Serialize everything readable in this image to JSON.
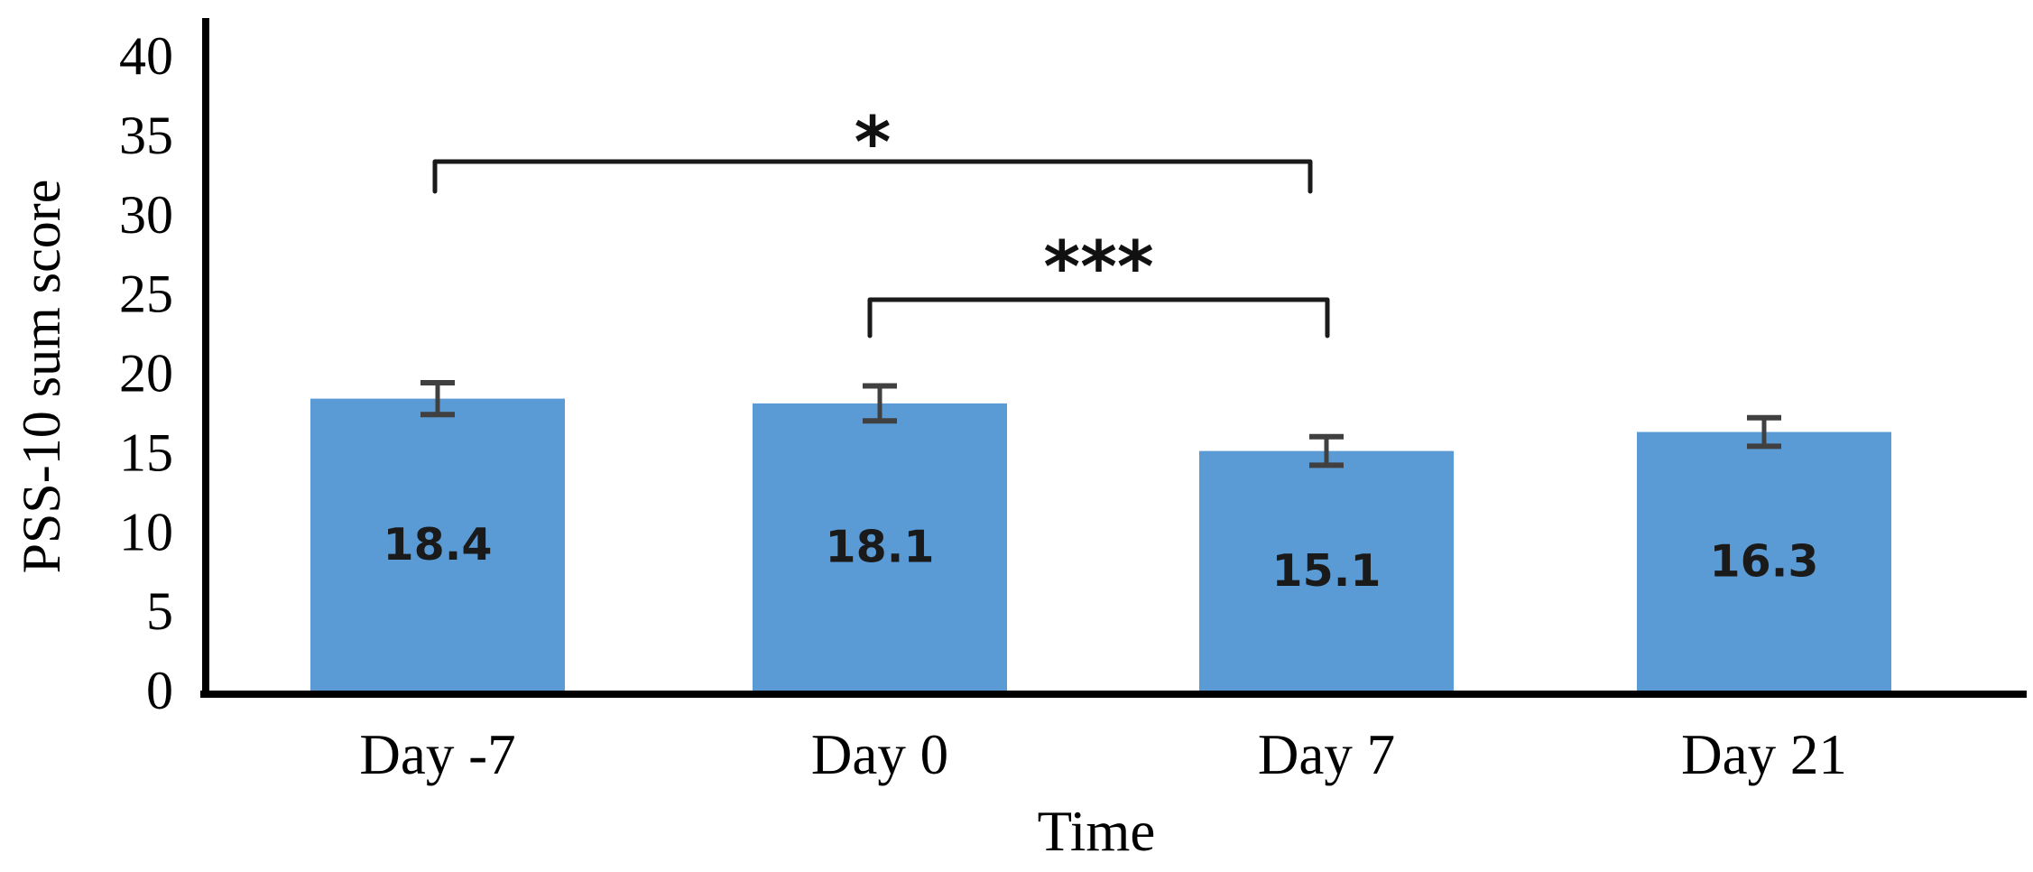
{
  "figure": {
    "background": "#ffffff"
  },
  "chart_data": {
    "type": "bar",
    "title": "",
    "categories": [
      "Day -7",
      "Day 0",
      "Day 7",
      "Day 21"
    ],
    "values": [
      18.4,
      18.1,
      15.1,
      16.3
    ],
    "value_labels": [
      "18.4",
      "18.1",
      "15.1",
      "16.3"
    ],
    "errors": [
      1.0,
      1.1,
      0.9,
      0.9
    ],
    "xlabel": "Time",
    "ylabel": "PSS-10 sum score",
    "ylim": [
      0,
      40
    ],
    "ytick_interval": 5,
    "yticks": [
      40,
      35,
      30,
      25,
      20,
      15,
      10,
      5,
      0
    ],
    "grid": false,
    "legend_position": "none",
    "bar_color": "#5B9BD5",
    "error_bar_color": "#404040",
    "axis_color": "#000000",
    "significance": [
      {
        "from": "Day -7",
        "to": "Day 7",
        "label": "*"
      },
      {
        "from": "Day 0",
        "to": "Day 7",
        "label": "***"
      }
    ]
  }
}
